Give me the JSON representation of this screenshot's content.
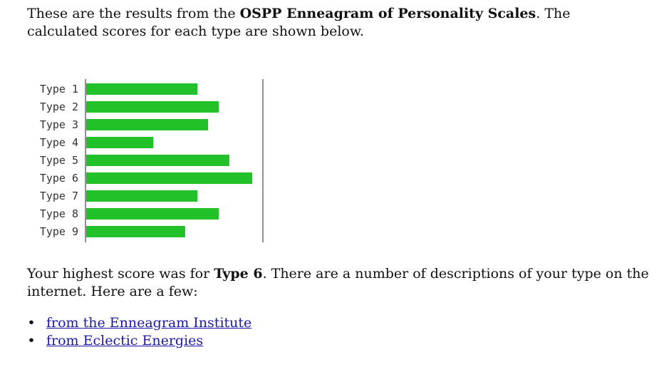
{
  "intro": {
    "prefix": "These are the results from the ",
    "test_name": "OSPP Enneagram of Personality Scales",
    "suffix": ". The calculated scores for each type are shown below."
  },
  "chart_data": {
    "type": "bar",
    "orientation": "horizontal",
    "categories": [
      "Type 1",
      "Type 2",
      "Type 3",
      "Type 4",
      "Type 5",
      "Type 6",
      "Type 7",
      "Type 8",
      "Type 9"
    ],
    "values": [
      0.63,
      0.75,
      0.69,
      0.38,
      0.81,
      0.94,
      0.63,
      0.75,
      0.56
    ],
    "xlim": [
      0,
      1
    ],
    "bar_color": "#22c12a",
    "grid": false,
    "legend": "none"
  },
  "result": {
    "prefix": "Your highest score was for ",
    "type": "Type 6",
    "suffix": ". There are a number of descriptions of your type on the internet. Here are a few:"
  },
  "links": [
    {
      "label": "from the Enneagram Institute"
    },
    {
      "label": "from Eclectic Energies"
    }
  ],
  "colors": {
    "link": "#1a1aa6",
    "bar": "#22c12a",
    "axis": "#222222"
  }
}
